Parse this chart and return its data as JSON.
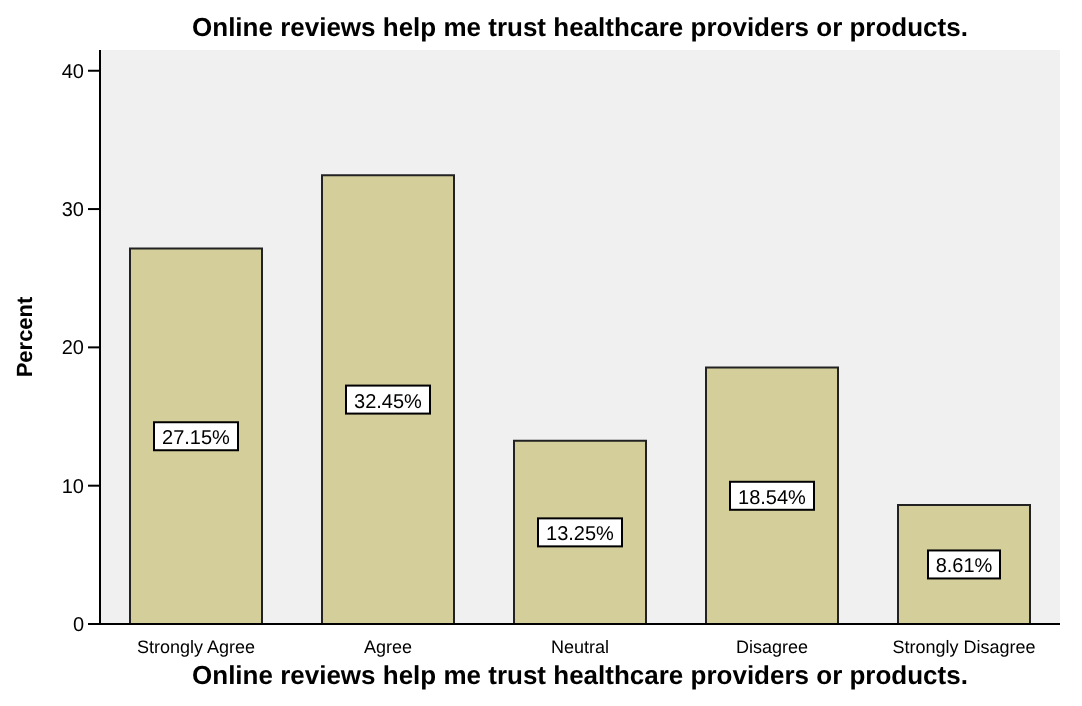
{
  "chart_data": {
    "type": "bar",
    "title": "Online reviews help me trust healthcare providers or products.",
    "xlabel": "Online reviews help me trust healthcare providers or products.",
    "ylabel": "Percent",
    "categories": [
      "Strongly Agree",
      "Agree",
      "Neutral",
      "Disagree",
      "Strongly Disagree"
    ],
    "values": [
      27.15,
      32.45,
      13.25,
      18.54,
      8.61
    ],
    "value_labels": [
      "27.15%",
      "32.45%",
      "13.25%",
      "18.54%",
      "8.61%"
    ],
    "color": "#d3ce9a",
    "ylim": [
      0,
      41.5
    ],
    "yticks": [
      0,
      10,
      20,
      30,
      40
    ],
    "grid": false,
    "legend": false
  }
}
